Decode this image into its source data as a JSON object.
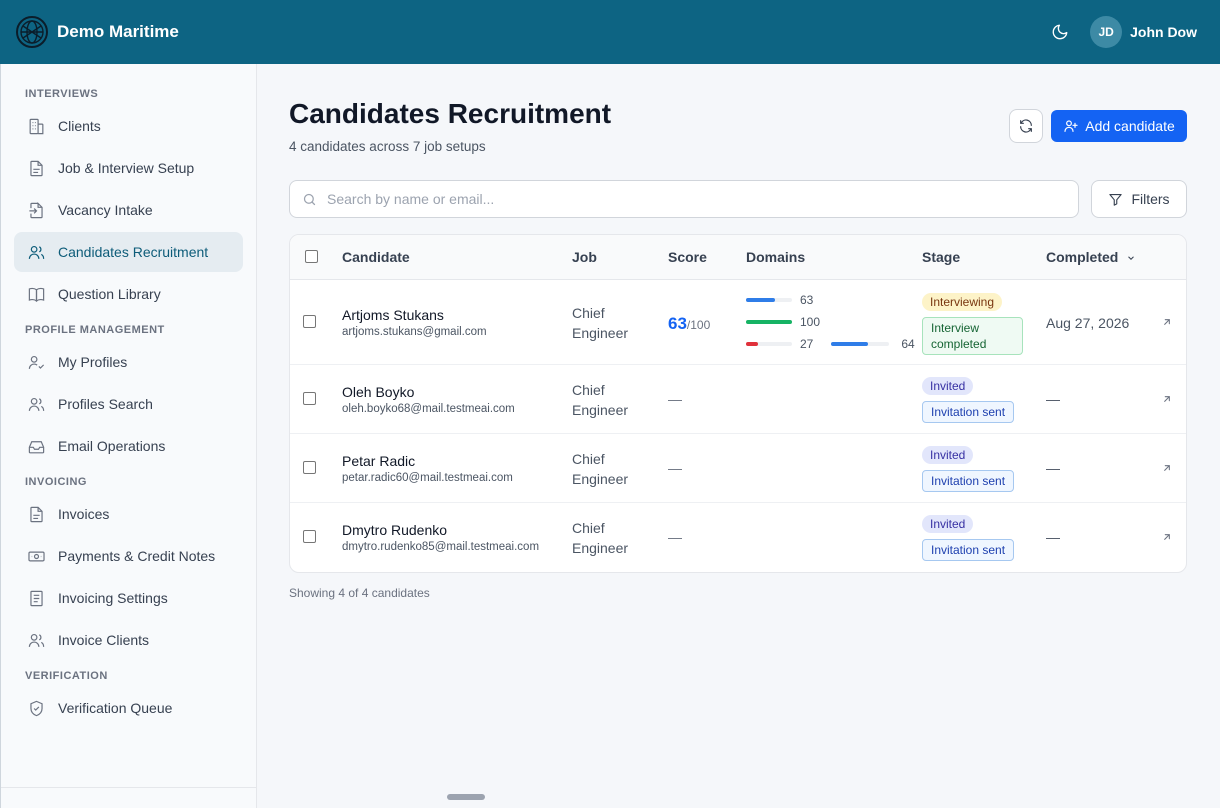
{
  "header": {
    "brand": "Demo Maritime",
    "user_initials": "JD",
    "user_name": "John Dow"
  },
  "sidebar": {
    "sections": [
      {
        "label": "INTERVIEWS"
      },
      {
        "label": "PROFILE MANAGEMENT"
      },
      {
        "label": "INVOICING"
      },
      {
        "label": "VERIFICATION"
      }
    ],
    "items": [
      {
        "label": "Clients",
        "icon": "building-icon"
      },
      {
        "label": "Job & Interview Setup",
        "icon": "document-icon"
      },
      {
        "label": "Vacancy Intake",
        "icon": "file-import-icon"
      },
      {
        "label": "Candidates Recruitment",
        "icon": "users-icon",
        "active": true
      },
      {
        "label": "Question Library",
        "icon": "book-icon"
      },
      {
        "label": "My Profiles",
        "icon": "user-check-icon"
      },
      {
        "label": "Profiles Search",
        "icon": "users-icon"
      },
      {
        "label": "Email Operations",
        "icon": "inbox-icon"
      },
      {
        "label": "Invoices",
        "icon": "document-icon"
      },
      {
        "label": "Payments & Credit Notes",
        "icon": "banknote-icon"
      },
      {
        "label": "Invoicing Settings",
        "icon": "list-document-icon"
      },
      {
        "label": "Invoice Clients",
        "icon": "users-icon"
      },
      {
        "label": "Verification Queue",
        "icon": "shield-check-icon"
      }
    ]
  },
  "main": {
    "title": "Candidates Recruitment",
    "subtitle": "4 candidates across 7 job setups",
    "add_button": "Add candidate",
    "search_placeholder": "Search by name or email...",
    "filters_button": "Filters",
    "columns": {
      "candidate": "Candidate",
      "job": "Job",
      "score": "Score",
      "domains": "Domains",
      "stage": "Stage",
      "completed": "Completed"
    },
    "rows": [
      {
        "name": "Artjoms Stukans",
        "email": "artjoms.stukans@gmail.com",
        "job": "Chief Engineer",
        "score": "63",
        "score_max": "/100",
        "domains": [
          {
            "value": 63,
            "label": "63",
            "color": "#2f7de8"
          },
          {
            "value": 100,
            "label": "100",
            "color": "#16b364"
          },
          {
            "value": 27,
            "label": "27",
            "color": "#e0313b"
          },
          {
            "value": 64,
            "label": "64",
            "color": "#2f7de8"
          }
        ],
        "stage": "Interviewing",
        "stage_tag": "Interview completed",
        "completed": "Aug 27, 2026"
      },
      {
        "name": "Oleh Boyko",
        "email": "oleh.boyko68@mail.testmeai.com",
        "job": "Chief Engineer",
        "score": "—",
        "stage": "Invited",
        "stage_tag": "Invitation sent",
        "completed": "—"
      },
      {
        "name": "Petar Radic",
        "email": "petar.radic60@mail.testmeai.com",
        "job": "Chief Engineer",
        "score": "—",
        "stage": "Invited",
        "stage_tag": "Invitation sent",
        "completed": "—"
      },
      {
        "name": "Dmytro Rudenko",
        "email": "dmytro.rudenko85@mail.testmeai.com",
        "job": "Chief Engineer",
        "score": "—",
        "stage": "Invited",
        "stage_tag": "Invitation sent",
        "completed": "—"
      }
    ],
    "footer": "Showing 4 of 4 candidates"
  }
}
